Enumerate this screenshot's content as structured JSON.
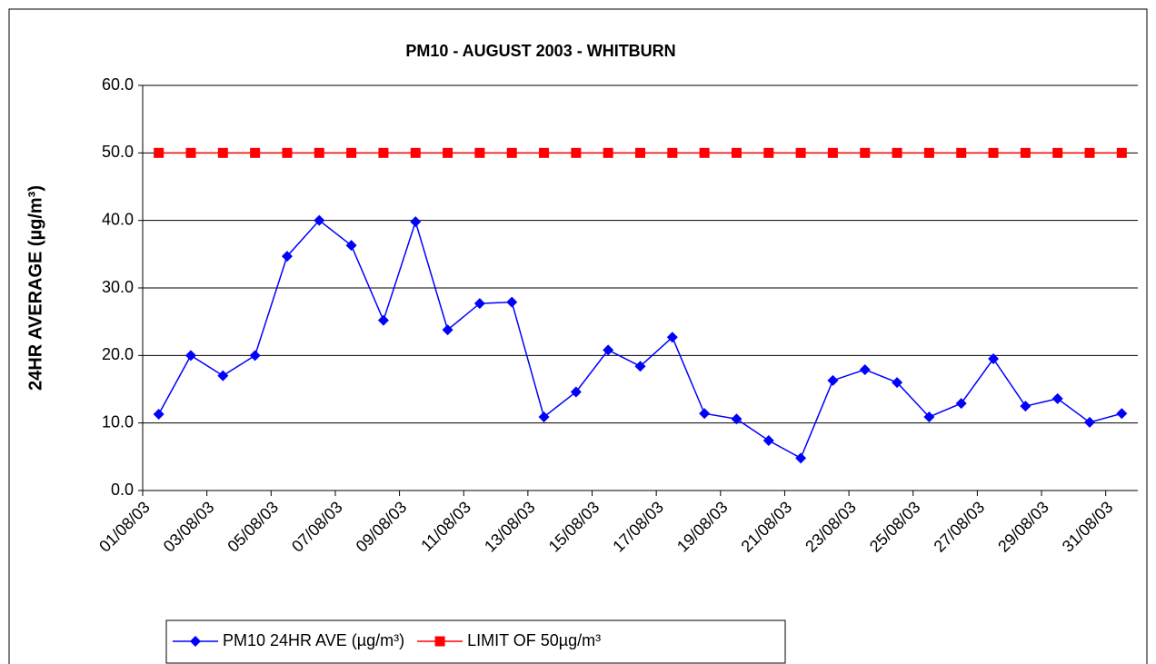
{
  "chart_data": {
    "type": "line",
    "title": "PM10 - AUGUST 2003 - WHITBURN",
    "y_label": "24HR AVERAGE (µg/m³)",
    "categories": [
      "01/08/03",
      null,
      "03/08/03",
      null,
      "05/08/03",
      null,
      "07/08/03",
      null,
      "09/08/03",
      null,
      "11/08/03",
      null,
      "13/08/03",
      null,
      "15/08/03",
      null,
      "17/08/03",
      null,
      "19/08/03",
      null,
      "21/08/03",
      null,
      "23/08/03",
      null,
      "25/08/03",
      null,
      "27/08/03",
      null,
      "29/08/03",
      null,
      "31/08/03"
    ],
    "series": [
      {
        "name": "PM10 24HR AVE (µg/m³)",
        "color": "#0000ff",
        "marker": "diamond",
        "values": [
          11.3,
          20.0,
          17.0,
          20.0,
          34.7,
          40.0,
          36.3,
          25.2,
          39.8,
          23.8,
          27.7,
          27.9,
          10.9,
          14.6,
          20.8,
          18.4,
          22.7,
          11.4,
          10.6,
          7.4,
          4.8,
          16.3,
          17.9,
          16.0,
          10.9,
          12.9,
          19.5,
          12.5,
          13.6,
          10.1,
          11.4
        ]
      },
      {
        "name": "LIMIT OF 50µg/m³",
        "color": "#ff0000",
        "marker": "square",
        "values": [
          50,
          50,
          50,
          50,
          50,
          50,
          50,
          50,
          50,
          50,
          50,
          50,
          50,
          50,
          50,
          50,
          50,
          50,
          50,
          50,
          50,
          50,
          50,
          50,
          50,
          50,
          50,
          50,
          50,
          50,
          50
        ]
      }
    ],
    "ylim": [
      0,
      60
    ],
    "yticks": [
      {
        "value": 0,
        "label": "0.0"
      },
      {
        "value": 10,
        "label": "10.0"
      },
      {
        "value": 20,
        "label": "20.0"
      },
      {
        "value": 30,
        "label": "30.0"
      },
      {
        "value": 40,
        "label": "40.0"
      },
      {
        "value": 50,
        "label": "50.0"
      },
      {
        "value": 60,
        "label": "60.0"
      }
    ],
    "grid": true,
    "legend": "bottom"
  }
}
